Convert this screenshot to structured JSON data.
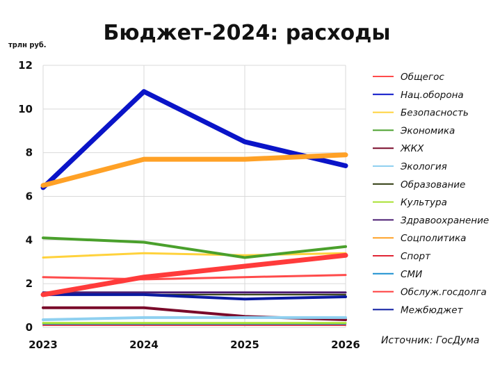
{
  "chart_data": {
    "type": "line",
    "title": "Бюджет-2024: расходы",
    "ylabel": "трлн руб.",
    "xlabel": "",
    "x": [
      "2023",
      "2024",
      "2025",
      "2026"
    ],
    "ylim": [
      0,
      12
    ],
    "yticks": [
      "0",
      "2",
      "4",
      "6",
      "8",
      "10",
      "12"
    ],
    "grid": true,
    "legend_position": "right",
    "source": "Источник: ГосДума",
    "series": [
      {
        "name": "Общегос",
        "color": "#ff4b4b",
        "width": 3,
        "values": [
          2.3,
          2.2,
          2.3,
          2.4
        ]
      },
      {
        "name": "Нац.оборона",
        "color": "#0a14c8",
        "width": 7,
        "values": [
          6.4,
          10.8,
          8.5,
          7.4
        ]
      },
      {
        "name": "Безопасность",
        "color": "#ffd23c",
        "width": 3,
        "values": [
          3.2,
          3.4,
          3.3,
          3.4
        ]
      },
      {
        "name": "Экономика",
        "color": "#4aa02c",
        "width": 4,
        "values": [
          4.1,
          3.9,
          3.2,
          3.7
        ]
      },
      {
        "name": "ЖКХ",
        "color": "#7a0a2a",
        "width": 4,
        "values": [
          0.9,
          0.9,
          0.5,
          0.35
        ]
      },
      {
        "name": "Экология",
        "color": "#8fd0f0",
        "width": 4,
        "values": [
          0.35,
          0.45,
          0.45,
          0.45
        ]
      },
      {
        "name": "Образование",
        "color": "#2e3a0e",
        "width": 2,
        "values": [
          1.5,
          1.5,
          1.5,
          1.5
        ]
      },
      {
        "name": "Культура",
        "color": "#a8e030",
        "width": 3,
        "values": [
          0.2,
          0.2,
          0.2,
          0.2
        ]
      },
      {
        "name": "Здравоохранение",
        "color": "#4b1c72",
        "width": 3,
        "values": [
          1.6,
          1.6,
          1.6,
          1.6
        ]
      },
      {
        "name": "Соцполитика",
        "color": "#ffa126",
        "width": 7,
        "values": [
          6.5,
          7.7,
          7.7,
          7.9
        ]
      },
      {
        "name": "Спорт",
        "color": "#e02535",
        "width": 2,
        "values": [
          0.1,
          0.1,
          0.1,
          0.1
        ]
      },
      {
        "name": "СМИ",
        "color": "#1a8fd0",
        "width": 2,
        "values": [
          0.15,
          0.15,
          0.15,
          0.15
        ]
      },
      {
        "name": "Обслуж.госдолга",
        "color": "#ff3b3b",
        "width": 7,
        "values": [
          1.5,
          2.3,
          2.8,
          3.3
        ]
      },
      {
        "name": "Межбюджет",
        "color": "#0a1aa0",
        "width": 4,
        "values": [
          1.5,
          1.5,
          1.3,
          1.4
        ]
      }
    ]
  }
}
